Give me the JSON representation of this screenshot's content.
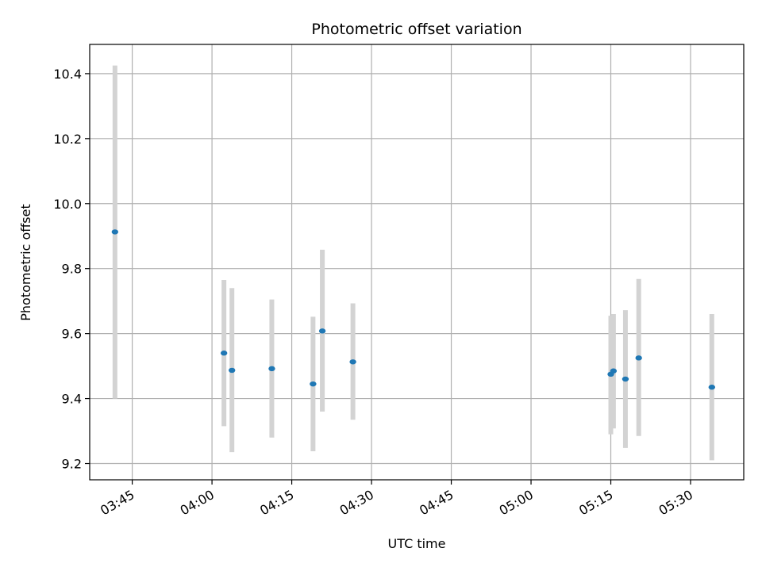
{
  "chart_data": {
    "type": "scatter",
    "title": "Photometric offset variation",
    "xlabel": "UTC time",
    "ylabel": "Photometric offset",
    "x_axis": "time (HH:MM UTC)",
    "xlim": [
      "03:37",
      "05:40"
    ],
    "ylim": [
      9.15,
      10.49
    ],
    "xticks": [
      "03:45",
      "04:00",
      "04:15",
      "04:30",
      "04:45",
      "05:00",
      "05:15",
      "05:30"
    ],
    "yticks": [
      9.2,
      9.4,
      9.6,
      9.8,
      10.0,
      10.2,
      10.4
    ],
    "ytick_labels": [
      "9.2",
      "9.4",
      "9.6",
      "9.8",
      "10.0",
      "10.2",
      "10.4"
    ],
    "grid": true,
    "colors": {
      "point": "#1f77b4",
      "errorbar": "#d3d3d3",
      "grid": "#b0b0b0"
    },
    "points": [
      {
        "x": "03:41:45",
        "y": 9.913,
        "err_low": 9.4,
        "err_high": 10.425
      },
      {
        "x": "04:02:15",
        "y": 9.54,
        "err_low": 9.315,
        "err_high": 9.765
      },
      {
        "x": "04:03:45",
        "y": 9.487,
        "err_low": 9.235,
        "err_high": 9.74
      },
      {
        "x": "04:11:15",
        "y": 9.492,
        "err_low": 9.28,
        "err_high": 9.705
      },
      {
        "x": "04:19:00",
        "y": 9.445,
        "err_low": 9.238,
        "err_high": 9.652
      },
      {
        "x": "04:20:45",
        "y": 9.608,
        "err_low": 9.36,
        "err_high": 9.858
      },
      {
        "x": "04:26:30",
        "y": 9.513,
        "err_low": 9.335,
        "err_high": 9.693
      },
      {
        "x": "05:15:00",
        "y": 9.475,
        "err_low": 9.29,
        "err_high": 9.655
      },
      {
        "x": "05:15:30",
        "y": 9.485,
        "err_low": 9.308,
        "err_high": 9.66
      },
      {
        "x": "05:17:45",
        "y": 9.46,
        "err_low": 9.248,
        "err_high": 9.672
      },
      {
        "x": "05:20:15",
        "y": 9.525,
        "err_low": 9.285,
        "err_high": 9.768
      },
      {
        "x": "05:34:00",
        "y": 9.435,
        "err_low": 9.21,
        "err_high": 9.66
      }
    ]
  }
}
